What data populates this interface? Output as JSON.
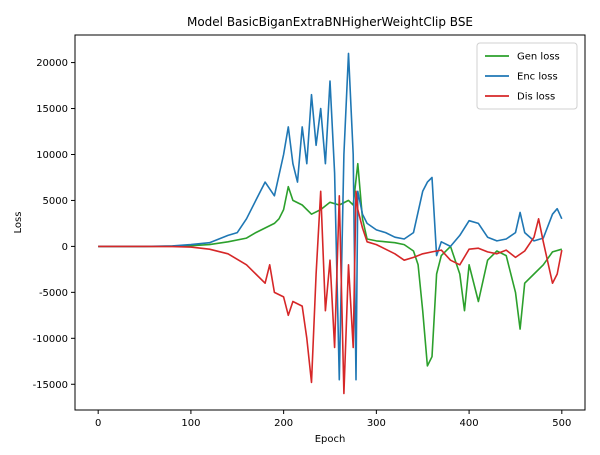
{
  "chart_data": {
    "type": "line",
    "title": "Model BasicBiganExtraBNHigherWeightClip BSE",
    "xlabel": "Epoch",
    "ylabel": "Loss",
    "xlim": [
      -25,
      525
    ],
    "ylim": [
      -17800,
      23000
    ],
    "xticks": [
      0,
      100,
      200,
      300,
      400,
      500
    ],
    "yticks": [
      -15000,
      -10000,
      -5000,
      0,
      5000,
      10000,
      15000,
      20000
    ],
    "grid": false,
    "legend_placement": "top-right",
    "series": [
      {
        "name": "Gen loss",
        "color": "#2ca02c",
        "points": [
          [
            0,
            0
          ],
          [
            50,
            0
          ],
          [
            80,
            20
          ],
          [
            100,
            80
          ],
          [
            120,
            200
          ],
          [
            140,
            500
          ],
          [
            160,
            900
          ],
          [
            170,
            1500
          ],
          [
            180,
            2000
          ],
          [
            190,
            2500
          ],
          [
            195,
            3000
          ],
          [
            200,
            4000
          ],
          [
            205,
            6500
          ],
          [
            210,
            5000
          ],
          [
            220,
            4500
          ],
          [
            230,
            3500
          ],
          [
            240,
            4000
          ],
          [
            250,
            4800
          ],
          [
            260,
            4500
          ],
          [
            270,
            5000
          ],
          [
            275,
            4500
          ],
          [
            280,
            9000
          ],
          [
            285,
            3000
          ],
          [
            290,
            800
          ],
          [
            300,
            600
          ],
          [
            310,
            500
          ],
          [
            320,
            400
          ],
          [
            330,
            200
          ],
          [
            340,
            -500
          ],
          [
            345,
            -2000
          ],
          [
            350,
            -7000
          ],
          [
            355,
            -13000
          ],
          [
            360,
            -12000
          ],
          [
            365,
            -3000
          ],
          [
            370,
            -1000
          ],
          [
            380,
            0
          ],
          [
            390,
            -3000
          ],
          [
            395,
            -7000
          ],
          [
            400,
            -2000
          ],
          [
            410,
            -6000
          ],
          [
            420,
            -1500
          ],
          [
            430,
            -500
          ],
          [
            440,
            -1000
          ],
          [
            450,
            -5000
          ],
          [
            455,
            -9000
          ],
          [
            460,
            -4000
          ],
          [
            470,
            -3000
          ],
          [
            480,
            -2000
          ],
          [
            490,
            -600
          ],
          [
            500,
            -300
          ]
        ]
      },
      {
        "name": "Enc loss",
        "color": "#1f77b4",
        "points": [
          [
            0,
            0
          ],
          [
            50,
            0
          ],
          [
            80,
            50
          ],
          [
            100,
            200
          ],
          [
            120,
            400
          ],
          [
            140,
            1200
          ],
          [
            150,
            1500
          ],
          [
            160,
            3000
          ],
          [
            170,
            5000
          ],
          [
            180,
            7000
          ],
          [
            190,
            5500
          ],
          [
            200,
            10000
          ],
          [
            205,
            13000
          ],
          [
            210,
            9000
          ],
          [
            215,
            7000
          ],
          [
            220,
            13000
          ],
          [
            225,
            9000
          ],
          [
            230,
            16500
          ],
          [
            235,
            11000
          ],
          [
            240,
            15000
          ],
          [
            245,
            9000
          ],
          [
            250,
            18000
          ],
          [
            255,
            8000
          ],
          [
            260,
            -14500
          ],
          [
            265,
            10000
          ],
          [
            270,
            21000
          ],
          [
            275,
            10000
          ],
          [
            278,
            -14500
          ],
          [
            280,
            6000
          ],
          [
            285,
            3500
          ],
          [
            290,
            2500
          ],
          [
            300,
            1800
          ],
          [
            310,
            1500
          ],
          [
            320,
            1000
          ],
          [
            330,
            800
          ],
          [
            340,
            1500
          ],
          [
            350,
            6000
          ],
          [
            355,
            7000
          ],
          [
            360,
            7500
          ],
          [
            365,
            -1000
          ],
          [
            370,
            500
          ],
          [
            380,
            0
          ],
          [
            390,
            1200
          ],
          [
            400,
            2800
          ],
          [
            410,
            2500
          ],
          [
            420,
            1000
          ],
          [
            430,
            600
          ],
          [
            440,
            800
          ],
          [
            450,
            1500
          ],
          [
            455,
            3700
          ],
          [
            460,
            1500
          ],
          [
            470,
            600
          ],
          [
            480,
            900
          ],
          [
            490,
            3500
          ],
          [
            495,
            4100
          ],
          [
            500,
            3000
          ]
        ]
      },
      {
        "name": "Dis loss",
        "color": "#d62728",
        "points": [
          [
            0,
            0
          ],
          [
            50,
            0
          ],
          [
            80,
            -20
          ],
          [
            100,
            -80
          ],
          [
            120,
            -300
          ],
          [
            140,
            -800
          ],
          [
            160,
            -2000
          ],
          [
            170,
            -3000
          ],
          [
            180,
            -4000
          ],
          [
            185,
            -2000
          ],
          [
            190,
            -5000
          ],
          [
            200,
            -5500
          ],
          [
            205,
            -7500
          ],
          [
            210,
            -6000
          ],
          [
            220,
            -6500
          ],
          [
            225,
            -10000
          ],
          [
            230,
            -14800
          ],
          [
            235,
            -3000
          ],
          [
            240,
            6000
          ],
          [
            245,
            -7000
          ],
          [
            250,
            -1500
          ],
          [
            255,
            -11000
          ],
          [
            260,
            5500
          ],
          [
            265,
            -16000
          ],
          [
            270,
            -2000
          ],
          [
            275,
            -11000
          ],
          [
            278,
            6000
          ],
          [
            280,
            4000
          ],
          [
            285,
            2000
          ],
          [
            290,
            500
          ],
          [
            300,
            200
          ],
          [
            310,
            -300
          ],
          [
            320,
            -800
          ],
          [
            330,
            -1500
          ],
          [
            340,
            -1200
          ],
          [
            350,
            -800
          ],
          [
            360,
            -600
          ],
          [
            370,
            -400
          ],
          [
            380,
            -1500
          ],
          [
            390,
            -2000
          ],
          [
            400,
            -300
          ],
          [
            410,
            -200
          ],
          [
            420,
            -600
          ],
          [
            430,
            -800
          ],
          [
            440,
            -400
          ],
          [
            450,
            -1200
          ],
          [
            460,
            -500
          ],
          [
            470,
            1000
          ],
          [
            475,
            3000
          ],
          [
            480,
            500
          ],
          [
            490,
            -4000
          ],
          [
            495,
            -3000
          ],
          [
            500,
            -400
          ]
        ]
      }
    ]
  }
}
